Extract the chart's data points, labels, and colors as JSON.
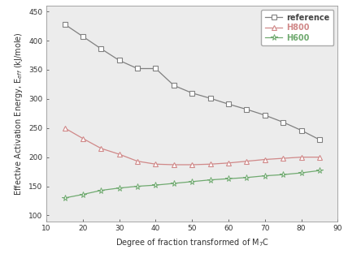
{
  "x": [
    15,
    20,
    25,
    30,
    35,
    40,
    45,
    50,
    55,
    60,
    65,
    70,
    75,
    80,
    85
  ],
  "reference": [
    428,
    407,
    386,
    366,
    352,
    352,
    323,
    310,
    301,
    291,
    282,
    272,
    260,
    246,
    230
  ],
  "H800": [
    250,
    232,
    215,
    205,
    193,
    188,
    187,
    187,
    188,
    190,
    193,
    196,
    198,
    200,
    200
  ],
  "H600": [
    130,
    136,
    143,
    147,
    150,
    152,
    155,
    158,
    161,
    163,
    165,
    168,
    170,
    173,
    177
  ],
  "ref_color": "#808080",
  "h800_color": "#d08888",
  "h600_color": "#70aa70",
  "xlabel": "Degree of fraction transformed of M$_7$C",
  "ylabel": "Effective Activation Energy, E$_{eff}$ (kJ/mole)",
  "xlim": [
    10,
    90
  ],
  "ylim": [
    90,
    460
  ],
  "yticks": [
    100,
    150,
    200,
    250,
    300,
    350,
    400,
    450
  ],
  "xticks": [
    10,
    20,
    30,
    40,
    50,
    60,
    70,
    80,
    90
  ],
  "plot_bg": "#ececec",
  "fig_bg": "#ffffff",
  "legend_labels": [
    "reference",
    "H800",
    "H600"
  ]
}
